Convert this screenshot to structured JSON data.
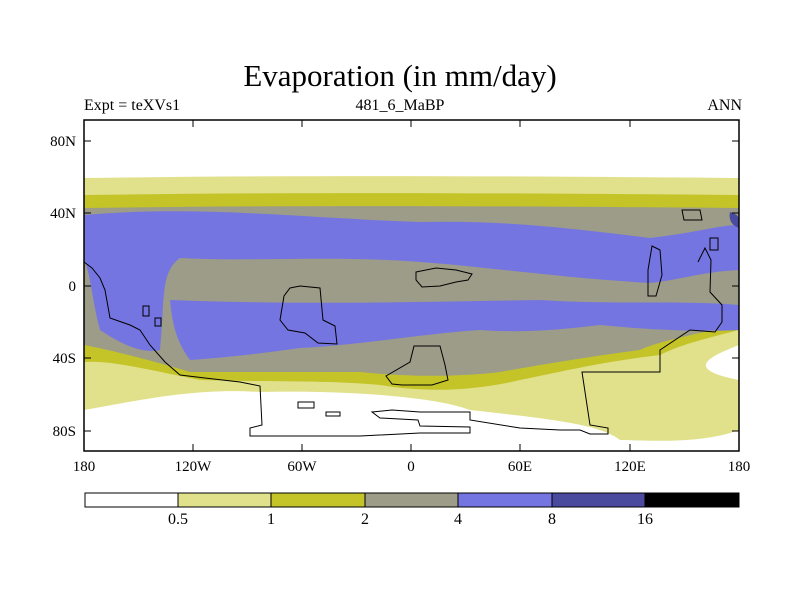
{
  "title": "Evaporation (in mm/day)",
  "subtitle": {
    "left": "Expt = teXVs1",
    "center": "481_6_MaBP",
    "right": "ANN"
  },
  "axes": {
    "lat_labels": [
      "80N",
      "40N",
      "0",
      "40S",
      "80S"
    ],
    "lon_labels": [
      "180",
      "120W",
      "60W",
      "0",
      "60E",
      "120E",
      "180"
    ]
  },
  "colorbar": {
    "levels": [
      "0.5",
      "1",
      "2",
      "4",
      "8",
      "16"
    ],
    "colors": [
      "#ffffff",
      "#e1e18c",
      "#c4c428",
      "#9c9c88",
      "#7575e1",
      "#4a4a9e",
      "#000000"
    ]
  }
}
